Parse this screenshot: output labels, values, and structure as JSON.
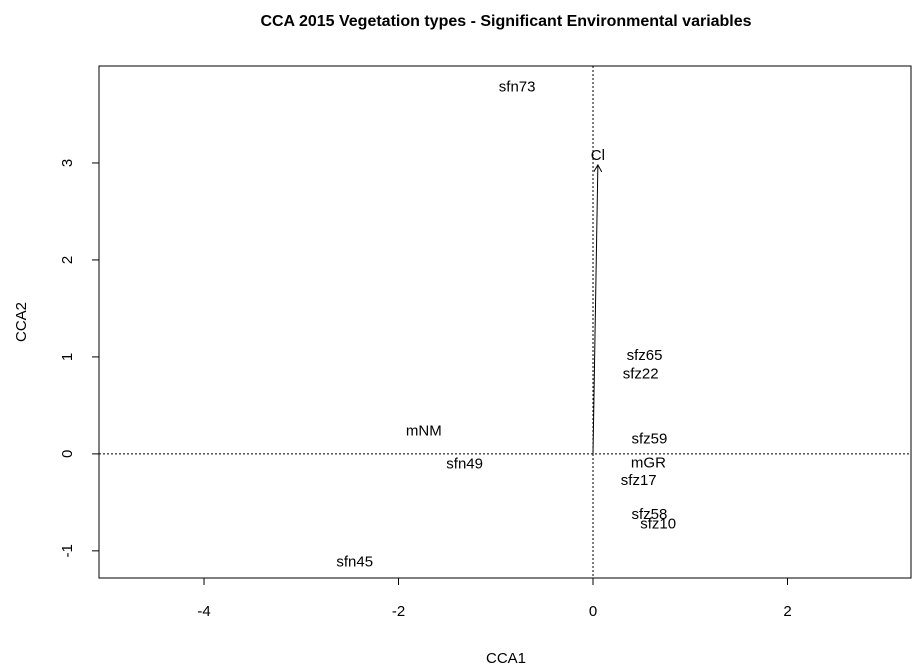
{
  "chart_data": {
    "type": "scatter",
    "title": "CCA 2015 Vegetation types - Significant Environmental variables",
    "xlabel": "CCA1",
    "ylabel": "CCA2",
    "xlim": [
      -5.08,
      3.27
    ],
    "ylim": [
      -1.28,
      4.0
    ],
    "xticks": [
      -4,
      -2,
      0,
      2
    ],
    "yticks": [
      -1,
      0,
      1,
      2,
      3
    ],
    "series": [
      {
        "color": "#228b22",
        "labels": [
          "sfn73",
          "sfz65",
          "sfz22",
          "sfz59",
          "sfz17",
          "sfz58",
          "sfz10",
          "sfn49",
          "sfn45"
        ],
        "x": [
          -0.78,
          0.53,
          0.49,
          0.58,
          0.47,
          0.58,
          0.67,
          -1.32,
          -2.45
        ],
        "y": [
          3.78,
          1.01,
          0.82,
          0.15,
          -0.28,
          -0.63,
          -0.73,
          -0.11,
          -1.12
        ]
      },
      {
        "color": "#000000",
        "labels": [
          "mNM",
          "mGR"
        ],
        "x": [
          -1.74,
          0.57
        ],
        "y": [
          0.23,
          -0.1
        ]
      }
    ],
    "arrows": [
      {
        "label": "Cl",
        "x": 0.05,
        "y": 2.98,
        "color": "#000000"
      }
    ]
  }
}
